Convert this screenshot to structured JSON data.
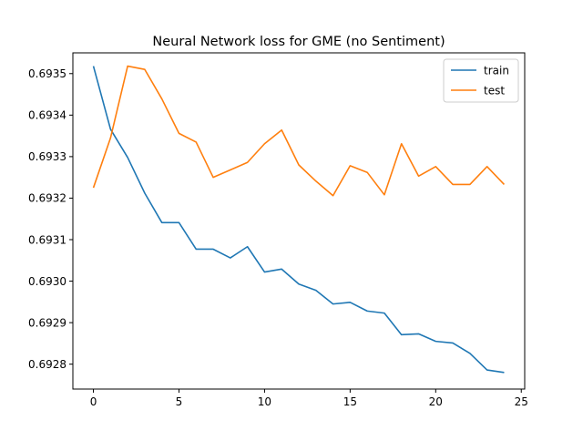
{
  "chart_data": {
    "type": "line",
    "title": "Neural Network loss for GME (no Sentiment)",
    "xlabel": "",
    "ylabel": "",
    "xlim": [
      -1.2,
      25.2
    ],
    "ylim": [
      0.69274,
      0.69355
    ],
    "xticks": [
      0,
      5,
      10,
      15,
      20,
      25
    ],
    "yticks": [
      0.6928,
      0.6929,
      0.693,
      0.6931,
      0.6932,
      0.6933,
      0.6934,
      0.6935
    ],
    "ytick_decimals": 4,
    "grid": false,
    "legend": "top-right",
    "x": [
      0,
      1,
      2,
      3,
      4,
      5,
      6,
      7,
      8,
      9,
      10,
      11,
      12,
      13,
      14,
      15,
      16,
      17,
      18,
      19,
      20,
      21,
      22,
      23,
      24
    ],
    "series": [
      {
        "name": "train",
        "color": "#1f77b4",
        "values": [
          0.693518,
          0.693366,
          0.693298,
          0.693212,
          0.693141,
          0.693141,
          0.693077,
          0.693077,
          0.693056,
          0.693083,
          0.693022,
          0.693029,
          0.692993,
          0.692978,
          0.692945,
          0.692949,
          0.692928,
          0.692923,
          0.692871,
          0.692873,
          0.692855,
          0.692851,
          0.692826,
          0.692786,
          0.69278
        ]
      },
      {
        "name": "test",
        "color": "#ff7f0e",
        "values": [
          0.693225,
          0.693345,
          0.693518,
          0.69351,
          0.693439,
          0.693356,
          0.693335,
          0.69325,
          0.693268,
          0.693286,
          0.693331,
          0.693364,
          0.69328,
          0.693241,
          0.693206,
          0.693278,
          0.693262,
          0.693208,
          0.693331,
          0.693253,
          0.693276,
          0.693233,
          0.693233,
          0.693276,
          0.693233
        ]
      }
    ]
  }
}
